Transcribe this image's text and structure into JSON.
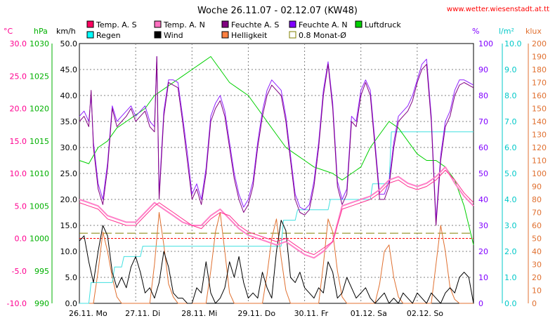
{
  "chart_data": {
    "type": "line",
    "title": "Woche 26.11.07 - 02.12.07 (KW48)",
    "source": "www.wetter.wiesenstadt.at.tt",
    "grid": true,
    "axes": {
      "temp": {
        "unit": "°C",
        "min": -10,
        "max": 30,
        "ticks": [
          "30.0",
          "25.0",
          "20.0",
          "15.0",
          "10.0",
          "5.0",
          "0.0",
          "-5.0",
          "-10.0"
        ],
        "color": "#ff0090"
      },
      "pressure": {
        "unit": "hPa",
        "min": 990,
        "max": 1030,
        "ticks": [
          "1030",
          "1025",
          "1020",
          "1015",
          "1010",
          "1005",
          "1000",
          "995",
          "990"
        ],
        "color": "#00b000"
      },
      "wind": {
        "unit": "km/h",
        "min": 0,
        "max": 50,
        "ticks": [
          "50.0",
          "45.0",
          "40.0",
          "35.0",
          "30.0",
          "25.0",
          "20.0",
          "15.0",
          "10.0",
          "5.0",
          "0.0"
        ],
        "color": "#000000"
      },
      "humidity": {
        "unit": "%",
        "min": 0,
        "max": 100,
        "ticks": [
          "100",
          "90",
          "80",
          "70",
          "60",
          "50",
          "40",
          "30",
          "20",
          "10",
          "0"
        ],
        "color": "#8000ff"
      },
      "rain": {
        "unit": "l/m²",
        "min": 0,
        "max": 10,
        "ticks": [
          "10.0",
          "9.0",
          "8.0",
          "7.0",
          "6.0",
          "5.0",
          "4.0",
          "3.0",
          "2.0",
          "1.0",
          "0.0"
        ],
        "color": "#00c8c8"
      },
      "light": {
        "unit": "klux",
        "min": 0,
        "max": 200,
        "ticks": [
          "200",
          "190",
          "180",
          "170",
          "160",
          "150",
          "140",
          "130",
          "120",
          "110",
          "100",
          "90",
          "80",
          "70",
          "60",
          "50",
          "40",
          "30",
          "20",
          "10",
          "0"
        ],
        "color": "#e07030"
      }
    },
    "x_ticks": [
      "26.11. Mo",
      "27.11. Di",
      "28.11. Mi",
      "29.11. Do",
      "30.11. Fr",
      "01.12. Sa",
      "02.12. So"
    ],
    "legend": [
      {
        "label": "Temp. A. S",
        "color": "#ff0060",
        "kind": "box"
      },
      {
        "label": "Temp. A. N",
        "color": "#ff70c0",
        "kind": "box"
      },
      {
        "label": "Feuchte A. S",
        "color": "#800080",
        "kind": "box"
      },
      {
        "label": "Feuchte A. N",
        "color": "#8000ff",
        "kind": "box"
      },
      {
        "label": "Luftdruck",
        "color": "#00d000",
        "kind": "box"
      },
      {
        "label": "Regen",
        "color": "#00ffff",
        "kind": "box"
      },
      {
        "label": "Wind",
        "color": "#000000",
        "kind": "box"
      },
      {
        "label": "Helligkeit",
        "color": "#ff8040",
        "kind": "box"
      },
      {
        "label": "0.8 Monat-Ø",
        "color": "#808000",
        "kind": "hollow"
      }
    ],
    "x_hours": 168,
    "reference_lines": [
      {
        "name": "0.8 Monat-Ø",
        "axis": "humidity",
        "value": 27,
        "color": "#808000"
      },
      {
        "name": "0 °C",
        "axis": "temp",
        "value": 0,
        "color": "#ff0000"
      }
    ],
    "series": [
      {
        "name": "Temp. A. S",
        "axis": "temp",
        "color": "#ff3090",
        "width": 1,
        "x": [
          0,
          4,
          8,
          12,
          16,
          20,
          24,
          28,
          32,
          34,
          36,
          40,
          44,
          48,
          52,
          56,
          60,
          64,
          68,
          72,
          76,
          80,
          84,
          88,
          92,
          96,
          100,
          104,
          108,
          112,
          116,
          120,
          124,
          128,
          132,
          136,
          140,
          144,
          148,
          152,
          156,
          160,
          164,
          168
        ],
        "y": [
          5.5,
          5.0,
          4.5,
          3.0,
          2.5,
          2.0,
          2.0,
          3.5,
          5.0,
          5.5,
          5.0,
          4.0,
          3.0,
          2.0,
          1.5,
          3.0,
          4.0,
          3.5,
          2.0,
          1.0,
          0.5,
          0.0,
          -0.5,
          0.0,
          -1.0,
          -2.0,
          -2.5,
          -1.5,
          -0.5,
          4.5,
          5.0,
          5.5,
          6.0,
          7.0,
          8.5,
          9.0,
          8.0,
          7.5,
          8.0,
          9.0,
          10.5,
          9.0,
          7.0,
          5.5
        ]
      },
      {
        "name": "Temp. A. N",
        "axis": "temp",
        "color": "#ff80c8",
        "width": 2,
        "x": [
          0,
          4,
          8,
          12,
          16,
          20,
          24,
          28,
          32,
          34,
          36,
          40,
          44,
          48,
          52,
          56,
          60,
          64,
          68,
          72,
          76,
          80,
          84,
          88,
          92,
          96,
          100,
          104,
          108,
          112,
          116,
          120,
          124,
          128,
          132,
          136,
          140,
          144,
          148,
          152,
          156,
          160,
          164,
          168
        ],
        "y": [
          6.0,
          5.5,
          5.0,
          3.5,
          3.0,
          2.5,
          2.5,
          4.0,
          5.5,
          5.0,
          4.5,
          3.5,
          2.5,
          2.0,
          2.0,
          3.5,
          4.5,
          3.0,
          1.5,
          0.5,
          0.0,
          -0.5,
          -1.0,
          -0.5,
          -1.5,
          -2.5,
          -3.0,
          -2.0,
          -0.5,
          5.0,
          5.5,
          6.0,
          6.5,
          7.5,
          9.0,
          9.5,
          8.5,
          8.0,
          8.5,
          9.5,
          11.0,
          8.5,
          6.5,
          5.0
        ]
      },
      {
        "name": "Feuchte A. S",
        "axis": "humidity",
        "color": "#800080",
        "width": 1,
        "x": [
          0,
          2,
          4,
          5,
          6,
          8,
          10,
          12,
          14,
          16,
          18,
          20,
          22,
          24,
          26,
          28,
          30,
          32,
          33,
          34,
          36,
          38,
          40,
          42,
          44,
          46,
          48,
          50,
          52,
          54,
          56,
          58,
          60,
          62,
          64,
          66,
          68,
          70,
          72,
          74,
          76,
          78,
          80,
          82,
          84,
          86,
          88,
          90,
          92,
          94,
          96,
          98,
          100,
          102,
          104,
          106,
          108,
          110,
          112,
          114,
          116,
          118,
          120,
          122,
          124,
          126,
          128,
          130,
          132,
          134,
          136,
          138,
          140,
          142,
          144,
          146,
          148,
          150,
          152,
          154,
          156,
          158,
          160,
          162,
          164,
          166,
          168
        ],
        "y": [
          70,
          72,
          68,
          82,
          60,
          44,
          38,
          52,
          75,
          68,
          70,
          72,
          75,
          70,
          72,
          74,
          68,
          66,
          95,
          40,
          72,
          85,
          84,
          83,
          70,
          55,
          40,
          44,
          38,
          50,
          70,
          75,
          78,
          72,
          60,
          48,
          40,
          35,
          38,
          45,
          60,
          72,
          80,
          84,
          82,
          80,
          70,
          55,
          40,
          35,
          34,
          36,
          45,
          60,
          80,
          92,
          75,
          45,
          38,
          42,
          70,
          68,
          80,
          85,
          80,
          60,
          40,
          40,
          45,
          60,
          70,
          72,
          74,
          78,
          85,
          90,
          92,
          70,
          30,
          55,
          68,
          72,
          80,
          84,
          85,
          84,
          83
        ]
      },
      {
        "name": "Feuchte A. N",
        "axis": "humidity",
        "color": "#9020ff",
        "width": 1,
        "x": [
          0,
          2,
          4,
          5,
          6,
          8,
          10,
          12,
          14,
          16,
          18,
          20,
          22,
          24,
          26,
          28,
          30,
          32,
          33,
          34,
          36,
          38,
          40,
          42,
          44,
          46,
          48,
          50,
          52,
          54,
          56,
          58,
          60,
          62,
          64,
          66,
          68,
          70,
          72,
          74,
          76,
          78,
          80,
          82,
          84,
          86,
          88,
          90,
          92,
          94,
          96,
          98,
          100,
          102,
          104,
          106,
          108,
          110,
          112,
          114,
          116,
          118,
          120,
          122,
          124,
          126,
          128,
          130,
          132,
          134,
          136,
          138,
          140,
          142,
          144,
          146,
          148,
          150,
          152,
          154,
          156,
          158,
          160,
          162,
          164,
          166,
          168
        ],
        "y": [
          72,
          74,
          70,
          80,
          62,
          46,
          40,
          54,
          76,
          70,
          72,
          74,
          76,
          72,
          74,
          76,
          70,
          68,
          95,
          42,
          74,
          86,
          86,
          85,
          72,
          58,
          42,
          46,
          40,
          52,
          72,
          77,
          80,
          74,
          62,
          50,
          42,
          37,
          40,
          47,
          62,
          74,
          82,
          86,
          84,
          82,
          72,
          57,
          42,
          37,
          36,
          38,
          47,
          62,
          82,
          93,
          77,
          47,
          40,
          44,
          72,
          70,
          82,
          86,
          82,
          62,
          42,
          42,
          47,
          62,
          72,
          74,
          76,
          80,
          86,
          92,
          94,
          72,
          32,
          57,
          70,
          74,
          82,
          86,
          86,
          85,
          84
        ]
      },
      {
        "name": "Luftdruck",
        "axis": "pressure",
        "color": "#00d000",
        "width": 1,
        "x": [
          0,
          4,
          8,
          12,
          16,
          20,
          24,
          28,
          32,
          36,
          40,
          44,
          48,
          52,
          56,
          60,
          64,
          68,
          72,
          76,
          80,
          84,
          88,
          92,
          96,
          100,
          104,
          108,
          112,
          116,
          120,
          124,
          128,
          132,
          136,
          140,
          144,
          148,
          152,
          156,
          160,
          164,
          168
        ],
        "y": [
          1012,
          1011.5,
          1014,
          1015,
          1017,
          1018,
          1019,
          1020,
          1022,
          1023,
          1024,
          1025,
          1026,
          1027,
          1028,
          1026,
          1024,
          1023,
          1022,
          1020,
          1018,
          1016,
          1014,
          1013,
          1012,
          1011,
          1010.5,
          1010,
          1009,
          1010,
          1011,
          1014,
          1016,
          1018,
          1017,
          1015,
          1013,
          1012,
          1012,
          1011,
          1009,
          1005,
          999
        ]
      },
      {
        "name": "Regen",
        "axis": "rain",
        "color": "#40e0e0",
        "width": 1,
        "x": [
          0,
          4,
          5,
          6,
          14,
          15,
          18,
          19,
          26,
          27,
          46,
          47,
          86,
          87,
          92,
          93,
          106,
          107,
          110,
          111,
          124,
          125,
          132,
          133,
          168
        ],
        "y": [
          0,
          0,
          0.8,
          0.8,
          0.8,
          1.4,
          1.4,
          1.8,
          1.8,
          2.2,
          2.2,
          2.2,
          2.2,
          3.2,
          3.2,
          3.6,
          3.6,
          4.0,
          4.0,
          4.0,
          4.0,
          4.6,
          4.6,
          6.6,
          6.6
        ]
      },
      {
        "name": "Wind",
        "axis": "wind",
        "color": "#000000",
        "width": 1,
        "x": [
          0,
          2,
          4,
          6,
          8,
          10,
          12,
          14,
          16,
          18,
          20,
          22,
          24,
          26,
          28,
          30,
          32,
          34,
          36,
          38,
          40,
          42,
          44,
          46,
          48,
          50,
          52,
          54,
          56,
          58,
          60,
          62,
          64,
          66,
          68,
          70,
          72,
          74,
          76,
          78,
          80,
          82,
          84,
          86,
          88,
          90,
          92,
          94,
          96,
          98,
          100,
          102,
          104,
          106,
          108,
          110,
          112,
          114,
          116,
          118,
          120,
          122,
          124,
          126,
          128,
          130,
          132,
          134,
          136,
          138,
          140,
          142,
          144,
          146,
          148,
          150,
          152,
          154,
          156,
          158,
          160,
          162,
          164,
          166,
          168
        ],
        "y": [
          12,
          13,
          8,
          4,
          10,
          15,
          13,
          6,
          3,
          5,
          3,
          7,
          9,
          6,
          2,
          3,
          1,
          4,
          10,
          7,
          2,
          1,
          1,
          0,
          0,
          3,
          2,
          8,
          2,
          0,
          1,
          3,
          8,
          5,
          9,
          4,
          1,
          2,
          1,
          6,
          3,
          1,
          10,
          16,
          14,
          5,
          4,
          6,
          3,
          2,
          1,
          3,
          2,
          8,
          6,
          1,
          2,
          5,
          3,
          1,
          2,
          3,
          1,
          0,
          1,
          2,
          0,
          1,
          0,
          2,
          1,
          0,
          2,
          1,
          0,
          2,
          1,
          0,
          2,
          3,
          2,
          5,
          6,
          5,
          0
        ]
      },
      {
        "name": "Helligkeit",
        "axis": "light",
        "color": "#e07030",
        "width": 1,
        "x": [
          0,
          6,
          8,
          10,
          12,
          14,
          16,
          18,
          30,
          32,
          34,
          36,
          38,
          40,
          42,
          54,
          56,
          58,
          60,
          62,
          64,
          66,
          78,
          80,
          82,
          84,
          86,
          88,
          90,
          102,
          104,
          106,
          108,
          110,
          112,
          114,
          126,
          128,
          130,
          132,
          134,
          136,
          138,
          150,
          152,
          154,
          156,
          158,
          160,
          162,
          168
        ],
        "y": [
          0,
          0,
          25,
          55,
          40,
          20,
          5,
          0,
          0,
          30,
          70,
          45,
          15,
          5,
          0,
          0,
          25,
          55,
          70,
          40,
          8,
          0,
          0,
          22,
          50,
          65,
          35,
          10,
          0,
          0,
          30,
          65,
          55,
          25,
          5,
          0,
          0,
          15,
          40,
          45,
          20,
          5,
          0,
          0,
          30,
          60,
          40,
          12,
          3,
          0,
          0
        ]
      }
    ]
  }
}
